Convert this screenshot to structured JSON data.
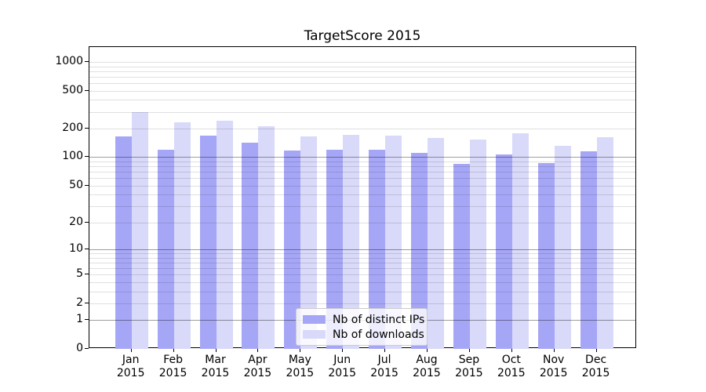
{
  "chart_data": {
    "type": "bar",
    "title": "TargetScore 2015",
    "year_label": "2015",
    "categories": [
      "Jan",
      "Feb",
      "Mar",
      "Apr",
      "May",
      "Jun",
      "Jul",
      "Aug",
      "Sep",
      "Oct",
      "Nov",
      "Dec"
    ],
    "series": [
      {
        "name": "Nb of distinct IPs",
        "color": "#a6a6f6",
        "values": [
          164,
          120,
          170,
          143,
          118,
          119,
          120,
          112,
          85,
          106,
          87,
          116
        ]
      },
      {
        "name": "Nb of downloads",
        "color": "#d9d9f9",
        "values": [
          296,
          233,
          240,
          210,
          164,
          173,
          170,
          158,
          154,
          180,
          132,
          161
        ]
      }
    ],
    "yscale": "log10(value+1)",
    "ylim": [
      0,
      1430
    ],
    "y_tick_labels": [
      "1000",
      "500",
      "200",
      "100",
      "50",
      "20",
      "10",
      "5",
      "2",
      "1",
      "0"
    ],
    "y_tick_values": [
      1000,
      500,
      200,
      100,
      50,
      20,
      10,
      5,
      2,
      1,
      0
    ],
    "grid_major_values": [
      100,
      10,
      1
    ],
    "grid_minor_values": [
      1000,
      900,
      800,
      700,
      600,
      500,
      400,
      300,
      200,
      90,
      80,
      70,
      60,
      50,
      40,
      30,
      20,
      9,
      8,
      7,
      6,
      5,
      4,
      3,
      2
    ],
    "grid": "on",
    "legend_position": "bottom-center",
    "xlabel": "",
    "ylabel": ""
  },
  "colors": {
    "grid_minor": "rgba(0,0,0,0.12)",
    "grid_major": "rgba(0,0,0,0.38)",
    "axis": "#000000",
    "legend_border": "#cccccc"
  }
}
